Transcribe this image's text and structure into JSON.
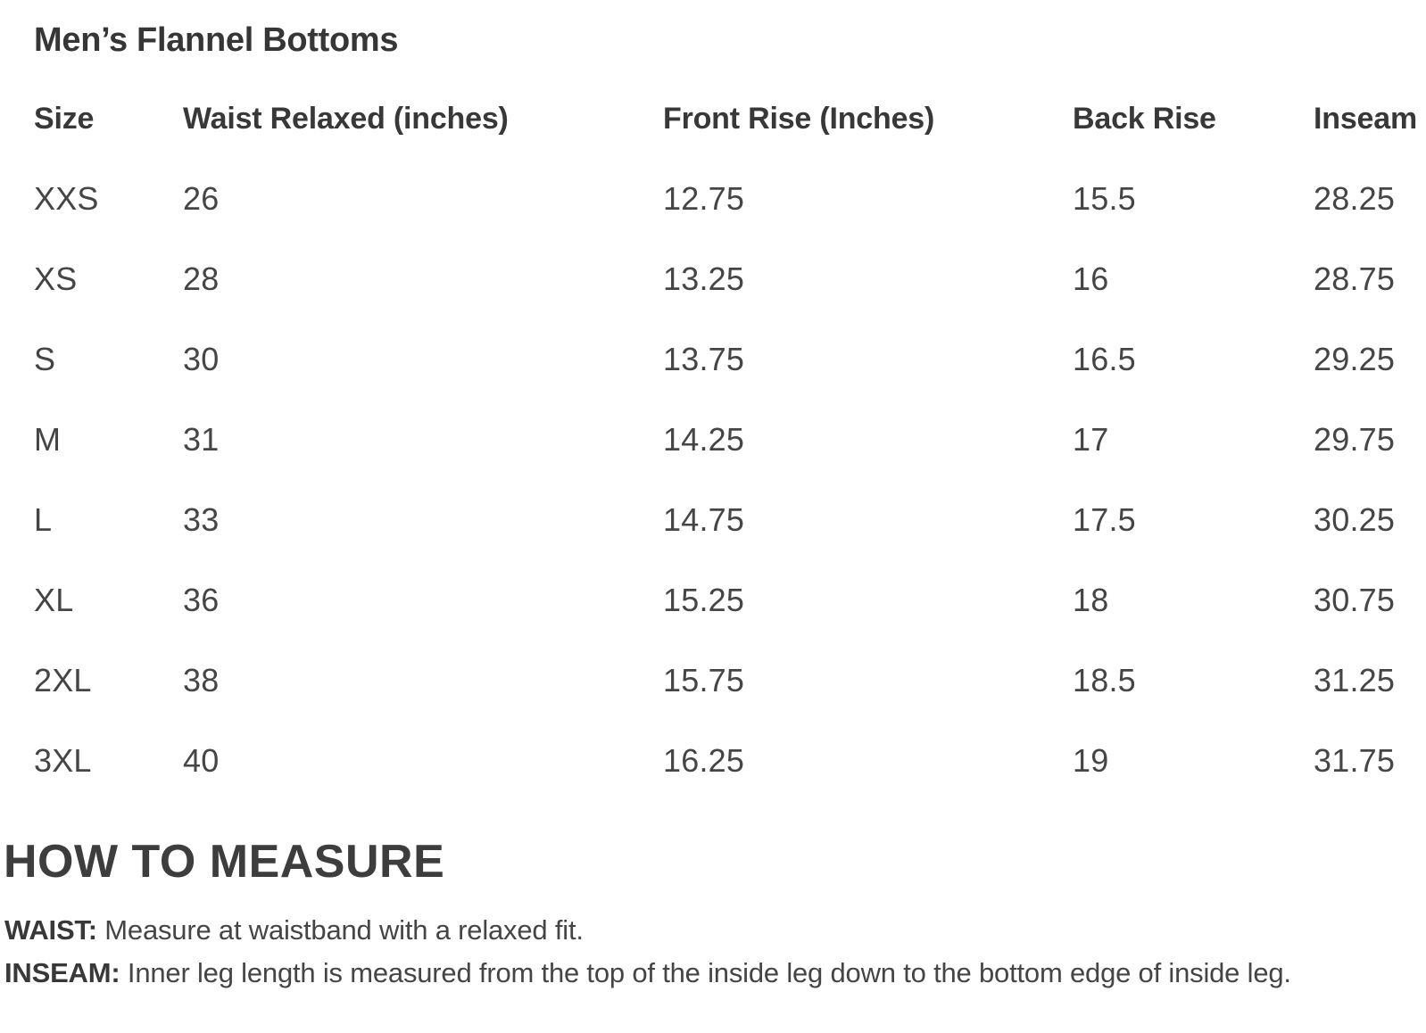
{
  "page": {
    "title": "Men’s Flannel Bottoms"
  },
  "size_table": {
    "columns": [
      "Size",
      "Waist Relaxed (inches)",
      "Front Rise (Inches)",
      "Back Rise",
      "Inseam"
    ],
    "rows": [
      [
        "XXS",
        "26",
        "12.75",
        "15.5",
        "28.25"
      ],
      [
        "XS",
        "28",
        "13.25",
        "16",
        "28.75"
      ],
      [
        "S",
        "30",
        "13.75",
        "16.5",
        "29.25"
      ],
      [
        "M",
        "31",
        "14.25",
        "17",
        "29.75"
      ],
      [
        "L",
        "33",
        "14.75",
        "17.5",
        "30.25"
      ],
      [
        "XL",
        "36",
        "15.25",
        "18",
        "30.75"
      ],
      [
        "2XL",
        "38",
        "15.75",
        "18.5",
        "31.25"
      ],
      [
        "3XL",
        "40",
        "16.25",
        "19",
        "31.75"
      ]
    ]
  },
  "how_to_measure": {
    "heading": "HOW TO MEASURE",
    "items": [
      {
        "label": "WAIST:",
        "text": "Measure at waistband with a relaxed fit."
      },
      {
        "label": "INSEAM:",
        "text": "Inner leg length is measured from the top of the inside leg down to the bottom edge of inside leg."
      }
    ]
  },
  "colors": {
    "background": "#ffffff",
    "heading_text": "#383838",
    "body_text": "#454545"
  }
}
